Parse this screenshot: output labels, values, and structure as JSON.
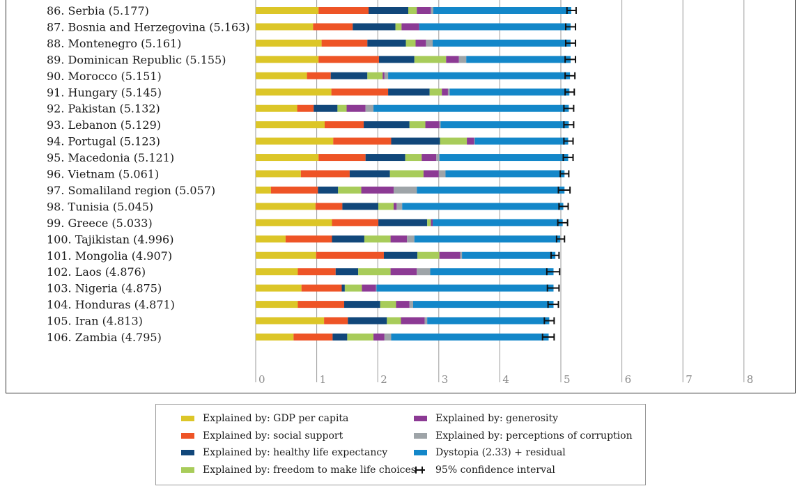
{
  "chart_data": {
    "type": "bar",
    "orientation": "horizontal",
    "stacked": true,
    "xlim": [
      0,
      8
    ],
    "x_ticks": [
      "0",
      "1",
      "2",
      "3",
      "4",
      "5",
      "6",
      "7",
      "8"
    ],
    "grid": true,
    "legend_position": "bottom",
    "segments": [
      {
        "key": "gdp",
        "name": "Explained by: GDP per capita",
        "color": "#DCC628"
      },
      {
        "key": "social",
        "name": "Explained by: social support",
        "color": "#EE5426"
      },
      {
        "key": "health",
        "name": "Explained by: healthy life expectancy",
        "color": "#11477A"
      },
      {
        "key": "freedom",
        "name": "Explained by: freedom to make life choices",
        "color": "#A8CC5A"
      },
      {
        "key": "generosity",
        "name": "Explained by: generosity",
        "color": "#8C3A94"
      },
      {
        "key": "corruption",
        "name": "Explained by: perceptions of corruption",
        "color": "#9EA4A8"
      },
      {
        "key": "dystopia",
        "name": "Dystopia (2.33) + residual",
        "color": "#1387C9"
      }
    ],
    "ci_legend": "95% confidence interval",
    "countries": [
      {
        "label": "86. Serbia (5.177)",
        "score": 5.177,
        "values": [
          1.03,
          0.82,
          0.65,
          0.14,
          0.23,
          0.04,
          2.26
        ],
        "ci": [
          5.1,
          5.25
        ]
      },
      {
        "label": "87. Bosnia and Herzegovina (5.163)",
        "score": 5.163,
        "values": [
          0.94,
          0.65,
          0.7,
          0.1,
          0.29,
          0.0,
          2.48
        ],
        "ci": [
          5.08,
          5.24
        ]
      },
      {
        "label": "88. Montenegro (5.161)",
        "score": 5.161,
        "values": [
          1.08,
          0.75,
          0.63,
          0.16,
          0.17,
          0.11,
          2.26
        ],
        "ci": [
          5.08,
          5.24
        ]
      },
      {
        "label": "89. Dominican Republic (5.155)",
        "score": 5.155,
        "values": [
          1.03,
          0.99,
          0.58,
          0.52,
          0.21,
          0.12,
          1.71
        ],
        "ci": [
          5.07,
          5.24
        ]
      },
      {
        "label": "90. Morocco (5.151)",
        "score": 5.151,
        "values": [
          0.84,
          0.39,
          0.6,
          0.25,
          0.03,
          0.06,
          2.98
        ],
        "ci": [
          5.07,
          5.23
        ]
      },
      {
        "label": "91. Hungary (5.145)",
        "score": 5.145,
        "values": [
          1.24,
          0.93,
          0.68,
          0.2,
          0.1,
          0.03,
          1.96
        ],
        "ci": [
          5.07,
          5.22
        ]
      },
      {
        "label": "92. Pakistan (5.132)",
        "score": 5.132,
        "values": [
          0.68,
          0.27,
          0.39,
          0.15,
          0.31,
          0.13,
          3.2
        ],
        "ci": [
          5.05,
          5.21
        ]
      },
      {
        "label": "93. Lebanon (5.129)",
        "score": 5.129,
        "values": [
          1.13,
          0.64,
          0.75,
          0.26,
          0.23,
          0.02,
          2.1
        ],
        "ci": [
          5.05,
          5.21
        ]
      },
      {
        "label": "94. Portugal (5.123)",
        "score": 5.123,
        "values": [
          1.27,
          0.95,
          0.8,
          0.44,
          0.12,
          0.01,
          1.53
        ],
        "ci": [
          5.05,
          5.2
        ]
      },
      {
        "label": "95. Macedonia (5.121)",
        "score": 5.121,
        "values": [
          1.03,
          0.77,
          0.65,
          0.27,
          0.24,
          0.05,
          2.11
        ],
        "ci": [
          5.04,
          5.2
        ]
      },
      {
        "label": "96. Vietnam (5.061)",
        "score": 5.061,
        "values": [
          0.74,
          0.8,
          0.66,
          0.55,
          0.25,
          0.11,
          1.95
        ],
        "ci": [
          4.99,
          5.13
        ]
      },
      {
        "label": "97. Somaliland region (5.057)",
        "score": 5.057,
        "values": [
          0.25,
          0.77,
          0.33,
          0.38,
          0.53,
          0.38,
          2.42
        ],
        "ci": [
          4.96,
          5.15
        ]
      },
      {
        "label": "98. Tunisia (5.045)",
        "score": 5.045,
        "values": [
          0.98,
          0.44,
          0.59,
          0.25,
          0.05,
          0.09,
          2.64
        ],
        "ci": [
          4.97,
          5.12
        ]
      },
      {
        "label": "99. Greece (5.033)",
        "score": 5.033,
        "values": [
          1.25,
          0.76,
          0.8,
          0.06,
          0.03,
          0.0,
          2.13
        ],
        "ci": [
          4.95,
          5.11
        ]
      },
      {
        "label": "100. Tajikistan (4.996)",
        "score": 4.996,
        "values": [
          0.49,
          0.76,
          0.53,
          0.43,
          0.27,
          0.12,
          2.39
        ],
        "ci": [
          4.93,
          5.06
        ]
      },
      {
        "label": "101. Mongolia (4.907)",
        "score": 4.907,
        "values": [
          0.99,
          1.11,
          0.55,
          0.36,
          0.34,
          0.03,
          1.53
        ],
        "ci": [
          4.84,
          4.97
        ]
      },
      {
        "label": "102. Laos (4.876)",
        "score": 4.876,
        "values": [
          0.69,
          0.62,
          0.37,
          0.53,
          0.43,
          0.22,
          2.02
        ],
        "ci": [
          4.77,
          4.98
        ]
      },
      {
        "label": "103. Nigeria (4.875)",
        "score": 4.875,
        "values": [
          0.75,
          0.66,
          0.05,
          0.28,
          0.23,
          0.01,
          2.9
        ],
        "ci": [
          4.78,
          4.97
        ]
      },
      {
        "label": "104. Honduras (4.871)",
        "score": 4.871,
        "values": [
          0.69,
          0.76,
          0.59,
          0.26,
          0.22,
          0.06,
          2.3
        ],
        "ci": [
          4.79,
          4.96
        ]
      },
      {
        "label": "105. Iran (4.813)",
        "score": 4.813,
        "values": [
          1.12,
          0.39,
          0.64,
          0.23,
          0.39,
          0.04,
          2.0
        ],
        "ci": [
          4.73,
          4.89
        ]
      },
      {
        "label": "106. Zambia (4.795)",
        "score": 4.795,
        "values": [
          0.62,
          0.64,
          0.24,
          0.43,
          0.18,
          0.11,
          2.58
        ],
        "ci": [
          4.7,
          4.89
        ]
      }
    ]
  }
}
